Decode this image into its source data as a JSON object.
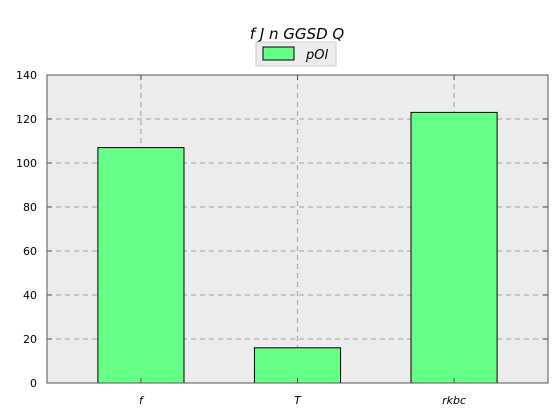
{
  "chart_data": {
    "type": "bar",
    "title": "f J n GGSD Q",
    "xlabel": "",
    "ylabel": "",
    "categories": [
      "f",
      "T",
      "rkbc"
    ],
    "series": [
      {
        "name": "pOl",
        "values": [
          107,
          16,
          123
        ]
      }
    ],
    "ylim": [
      0,
      140
    ],
    "yticks": [
      0,
      20,
      40,
      60,
      80,
      100,
      120,
      140
    ],
    "grid": true,
    "legend": "top-center",
    "colors": {
      "bar_fill": "#66ff88",
      "bar_edge": "#000000",
      "plot_bg": "#ececec",
      "grid": "#b0b0b0"
    }
  }
}
